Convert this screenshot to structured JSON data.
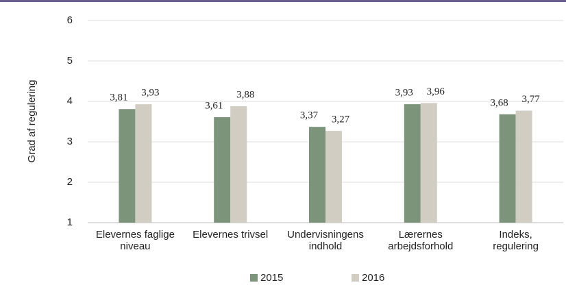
{
  "chart_data": {
    "type": "bar",
    "y_label": "Grad af regulering",
    "categories": [
      [
        "Elevernes faglige",
        "niveau"
      ],
      [
        "Elevernes trivsel"
      ],
      [
        "Undervisningens",
        "indhold"
      ],
      [
        "Lærernes",
        "arbejdsforhold"
      ],
      [
        "Indeks,",
        "regulering"
      ]
    ],
    "series": [
      {
        "name": "2015",
        "color": "#7b947a",
        "values": [
          3.81,
          3.61,
          3.37,
          3.93,
          3.68
        ],
        "value_labels": [
          "3,81",
          "3,61",
          "3,37",
          "3,93",
          "3,68"
        ]
      },
      {
        "name": "2016",
        "color": "#d1cdc3",
        "values": [
          3.93,
          3.88,
          3.27,
          3.96,
          3.77
        ],
        "value_labels": [
          "3,93",
          "3,88",
          "3,27",
          "3,96",
          "3,77"
        ]
      }
    ],
    "ylim": [
      1,
      6
    ],
    "yticks": [
      1,
      2,
      3,
      4,
      5,
      6
    ],
    "grid": true,
    "legend": "bottom"
  }
}
